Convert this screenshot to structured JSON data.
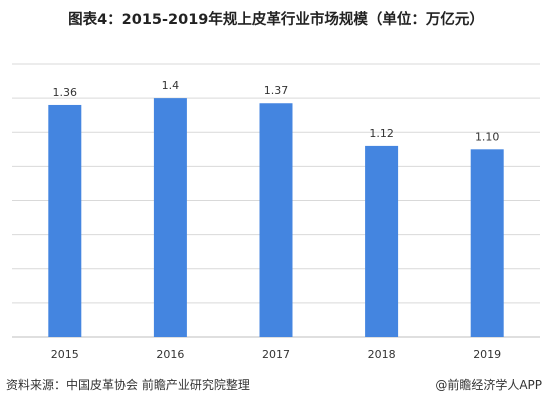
{
  "chart_data": {
    "type": "bar",
    "title": "图表4：2015-2019年规上皮革行业市场规模（单位：万亿元）",
    "categories": [
      "2015",
      "2016",
      "2017",
      "2018",
      "2019"
    ],
    "values": [
      1.36,
      1.4,
      1.37,
      1.12,
      1.1
    ],
    "value_labels": [
      "1.36",
      "1.4",
      "1.37",
      "1.12",
      "1.10"
    ],
    "ylim": [
      0,
      1.6
    ],
    "grid": true,
    "legend": "none",
    "bar_color": "#4485e0"
  },
  "footer": {
    "source": "资料来源：中国皮革协会  前瞻产业研究院整理",
    "app": "@前瞻经济学人APP"
  }
}
